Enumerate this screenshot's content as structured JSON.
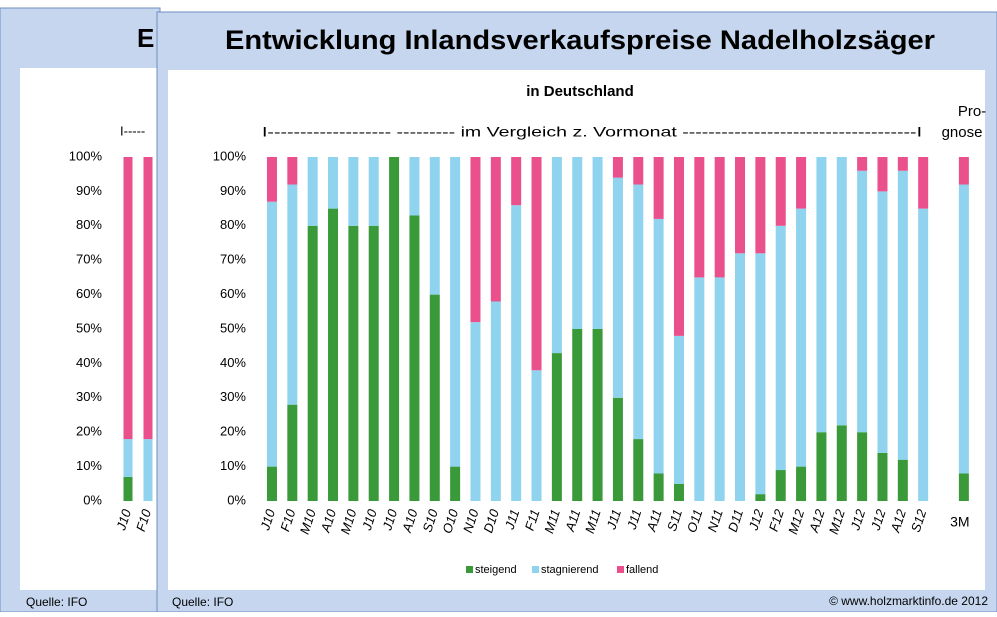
{
  "chart_data": [
    {
      "type": "bar",
      "stacked": true,
      "title": "E",
      "annotation": "I-----",
      "source": "Quelle: IFO",
      "categories": [
        "J10",
        "F10"
      ],
      "series": [
        {
          "color": "#3a9a3a",
          "values": [
            7,
            0
          ]
        },
        {
          "color": "#8fd3ee",
          "values": [
            11,
            18
          ]
        },
        {
          "color": "#e9508c",
          "values": [
            82,
            82
          ]
        }
      ],
      "ylim": [
        0,
        100
      ],
      "yticks": [
        {
          "value": 0,
          "label": "0%"
        },
        {
          "value": 10,
          "label": "10%"
        },
        {
          "value": 20,
          "label": "20%"
        },
        {
          "value": 30,
          "label": "30%"
        },
        {
          "value": 40,
          "label": "40%"
        },
        {
          "value": 50,
          "label": "50%"
        },
        {
          "value": 60,
          "label": "60%"
        },
        {
          "value": 70,
          "label": "70%"
        },
        {
          "value": 80,
          "label": "80%"
        },
        {
          "value": 90,
          "label": "90%"
        },
        {
          "value": 100,
          "label": "100%"
        }
      ],
      "grid": false
    },
    {
      "type": "bar",
      "stacked": true,
      "title": "Entwicklung Inlandsverkaufspreise Nadelholzsäger",
      "subtitle": "in Deutschland",
      "annotation": "I------------------- --------- im Vergleich z. Vormonat ------------------------------------I",
      "annotation_2": [
        "Pro-",
        "gnose"
      ],
      "source": "Quelle: IFO",
      "credit": "© www.holzmarktinfo.de 2012",
      "categories": [
        "J10",
        "F10",
        "M10",
        "A10",
        "M10",
        "J10",
        "J10",
        "A10",
        "S10",
        "O10",
        "N10",
        "D10",
        "J11",
        "F11",
        "M11",
        "A11",
        "M11",
        "J11",
        "J11",
        "A11",
        "S11",
        "O11",
        "N11",
        "D11",
        "J12",
        "F12",
        "M12",
        "A12",
        "M12",
        "J12",
        "J12",
        "A12",
        "S12",
        null,
        "3M"
      ],
      "series": [
        {
          "name": "steigend",
          "color": "#3a9a3a",
          "values": [
            10,
            28,
            80,
            85,
            80,
            80,
            100,
            83,
            60,
            10,
            0,
            0,
            0,
            0,
            43,
            50,
            50,
            30,
            18,
            8,
            5,
            0,
            0,
            0,
            2,
            9,
            10,
            20,
            22,
            20,
            14,
            12,
            0,
            null,
            8
          ]
        },
        {
          "name": "stagnierend",
          "color": "#8fd3ee",
          "values": [
            77,
            64,
            20,
            15,
            20,
            20,
            0,
            17,
            40,
            90,
            52,
            58,
            86,
            38,
            57,
            50,
            50,
            64,
            74,
            74,
            43,
            65,
            65,
            72,
            70,
            71,
            75,
            80,
            78,
            76,
            76,
            84,
            85,
            null,
            84
          ]
        },
        {
          "name": "fallend",
          "color": "#e9508c",
          "values": [
            13,
            8,
            0,
            0,
            0,
            0,
            0,
            0,
            0,
            0,
            48,
            42,
            14,
            62,
            0,
            0,
            0,
            6,
            8,
            18,
            52,
            35,
            35,
            28,
            28,
            20,
            15,
            0,
            0,
            4,
            10,
            4,
            15,
            null,
            8
          ]
        }
      ],
      "ylim": [
        0,
        100
      ],
      "yticks": [
        {
          "value": 0,
          "label": "0%"
        },
        {
          "value": 10,
          "label": "10%"
        },
        {
          "value": 20,
          "label": "20%"
        },
        {
          "value": 30,
          "label": "30%"
        },
        {
          "value": 40,
          "label": "40%"
        },
        {
          "value": 50,
          "label": "50%"
        },
        {
          "value": 60,
          "label": "60%"
        },
        {
          "value": 70,
          "label": "70%"
        },
        {
          "value": 80,
          "label": "80%"
        },
        {
          "value": 90,
          "label": "90%"
        },
        {
          "value": 100,
          "label": "100%"
        }
      ],
      "grid": false,
      "legend": "bottom"
    }
  ]
}
